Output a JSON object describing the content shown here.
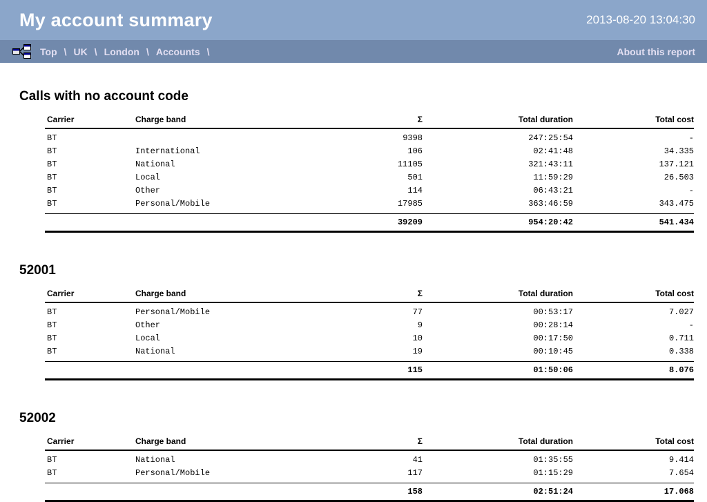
{
  "header": {
    "title": "My account summary",
    "timestamp": "2013-08-20 13:04:30"
  },
  "breadcrumb": {
    "items": [
      "Top",
      "UK",
      "London",
      "Accounts"
    ],
    "separator": "\\",
    "about_link": "About this report",
    "icon": "sitemap-icon"
  },
  "table_columns": [
    {
      "label": "Carrier",
      "align": "left"
    },
    {
      "label": "Charge band",
      "align": "left"
    },
    {
      "label": "Σ",
      "align": "right"
    },
    {
      "label": "Total duration",
      "align": "right"
    },
    {
      "label": "Total cost",
      "align": "right"
    }
  ],
  "sections": [
    {
      "title": "Calls with no account code",
      "rows": [
        [
          "BT",
          "",
          "9398",
          "247:25:54",
          "-"
        ],
        [
          "BT",
          "International",
          "106",
          "02:41:48",
          "34.335"
        ],
        [
          "BT",
          "National",
          "11105",
          "321:43:11",
          "137.121"
        ],
        [
          "BT",
          "Local",
          "501",
          "11:59:29",
          "26.503"
        ],
        [
          "BT",
          "Other",
          "114",
          "06:43:21",
          "-"
        ],
        [
          "BT",
          "Personal/Mobile",
          "17985",
          "363:46:59",
          "343.475"
        ]
      ],
      "total": [
        "",
        "",
        "39209",
        "954:20:42",
        "541.434"
      ]
    },
    {
      "title": "52001",
      "rows": [
        [
          "BT",
          "Personal/Mobile",
          "77",
          "00:53:17",
          "7.027"
        ],
        [
          "BT",
          "Other",
          "9",
          "00:28:14",
          "-"
        ],
        [
          "BT",
          "Local",
          "10",
          "00:17:50",
          "0.711"
        ],
        [
          "BT",
          "National",
          "19",
          "00:10:45",
          "0.338"
        ]
      ],
      "total": [
        "",
        "",
        "115",
        "01:50:06",
        "8.076"
      ]
    },
    {
      "title": "52002",
      "rows": [
        [
          "BT",
          "National",
          "41",
          "01:35:55",
          "9.414"
        ],
        [
          "BT",
          "Personal/Mobile",
          "117",
          "01:15:29",
          "7.654"
        ]
      ],
      "total": [
        "",
        "",
        "158",
        "02:51:24",
        "17.068"
      ]
    }
  ],
  "colors": {
    "header_bg": "#8BA6CA",
    "breadcrumb_bg": "#7189AC",
    "link_text": "#E3DFF2",
    "title_text": "#FFFFFF",
    "rule": "#000000"
  }
}
